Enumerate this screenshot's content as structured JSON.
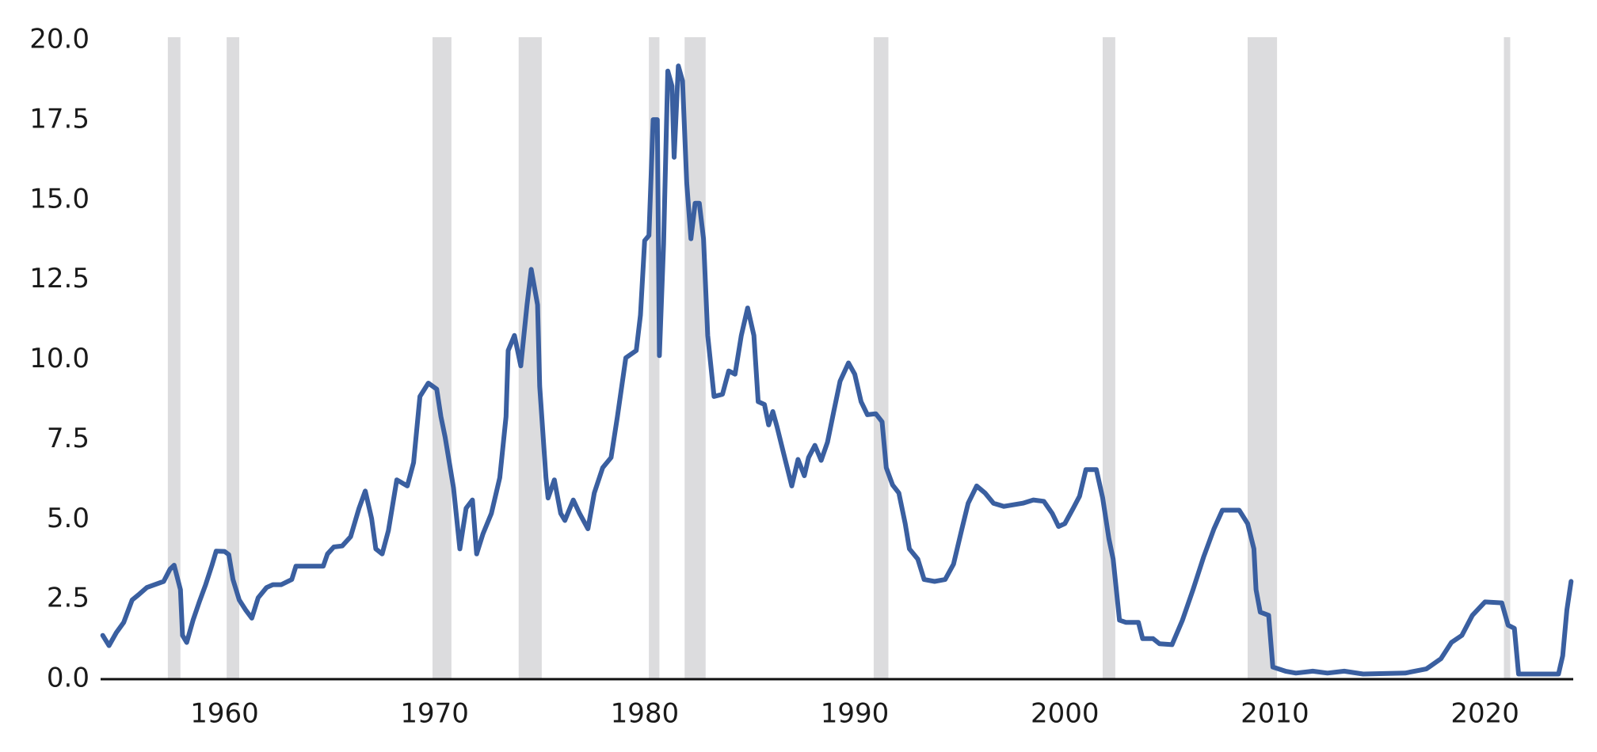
{
  "chart_data": {
    "type": "line",
    "x": [
      1954.2,
      1954.5,
      1954.85,
      1955.2,
      1955.6,
      1955.9,
      1956.3,
      1957.1,
      1957.4,
      1957.6,
      1957.9,
      1958.0,
      1958.2,
      1958.5,
      1958.8,
      1959.1,
      1959.4,
      1959.6,
      1960.0,
      1960.2,
      1960.4,
      1960.7,
      1961.0,
      1961.3,
      1961.6,
      1962.0,
      1962.3,
      1962.7,
      1963.2,
      1963.4,
      1964.4,
      1964.7,
      1964.9,
      1965.2,
      1965.6,
      1966.0,
      1966.4,
      1966.7,
      1967.0,
      1967.2,
      1967.5,
      1967.8,
      1968.2,
      1968.7,
      1969.0,
      1969.3,
      1969.7,
      1970.1,
      1970.3,
      1970.5,
      1970.9,
      1971.2,
      1971.5,
      1971.8,
      1972.0,
      1972.3,
      1972.7,
      1973.1,
      1973.4,
      1973.5,
      1973.8,
      1974.1,
      1974.4,
      1974.6,
      1974.9,
      1975.0,
      1975.3,
      1975.4,
      1975.7,
      1976.0,
      1976.2,
      1976.6,
      1976.9,
      1977.3,
      1977.6,
      1978.0,
      1978.4,
      1978.7,
      1979.1,
      1979.6,
      1979.8,
      1980.0,
      1980.2,
      1980.4,
      1980.6,
      1980.7,
      1980.9,
      1981.1,
      1981.3,
      1981.4,
      1981.6,
      1981.8,
      1982.0,
      1982.2,
      1982.4,
      1982.6,
      1982.8,
      1983.0,
      1983.3,
      1983.7,
      1984.0,
      1984.3,
      1984.6,
      1984.9,
      1985.2,
      1985.4,
      1985.7,
      1985.9,
      1986.1,
      1986.3,
      1986.6,
      1987.0,
      1987.3,
      1987.6,
      1987.8,
      1988.1,
      1988.4,
      1988.7,
      1989.0,
      1989.3,
      1989.7,
      1990.0,
      1990.3,
      1990.6,
      1991.0,
      1991.3,
      1991.5,
      1991.8,
      1992.1,
      1992.4,
      1992.6,
      1993.0,
      1993.3,
      1993.8,
      1994.3,
      1994.7,
      1995.1,
      1995.4,
      1995.8,
      1996.2,
      1996.6,
      1997.1,
      1998.0,
      1998.5,
      1999.0,
      1999.4,
      1999.7,
      2000.0,
      2000.4,
      2000.7,
      2001.0,
      2001.5,
      2001.8,
      2002.1,
      2002.3,
      2002.6,
      2002.9,
      2003.5,
      2003.7,
      2004.2,
      2004.5,
      2005.1,
      2005.6,
      2006.1,
      2006.6,
      2007.1,
      2007.5,
      2008.3,
      2008.7,
      2009.0,
      2009.1,
      2009.3,
      2009.7,
      2009.9,
      2010.5,
      2011.0,
      2011.8,
      2012.5,
      2013.3,
      2014.2,
      2016.2,
      2017.2,
      2017.4,
      2017.9,
      2018.4,
      2018.9,
      2019.4,
      2020.0,
      2020.8,
      2021.1,
      2021.4,
      2021.6,
      2023.5,
      2023.7,
      2023.9,
      2024.1
    ],
    "values": [
      1.37,
      1.05,
      1.46,
      1.78,
      2.48,
      2.64,
      2.87,
      3.06,
      3.44,
      3.57,
      2.8,
      1.37,
      1.15,
      1.85,
      2.42,
      2.96,
      3.57,
      4.01,
      4.0,
      3.9,
      3.12,
      2.48,
      2.17,
      1.91,
      2.55,
      2.87,
      2.96,
      2.96,
      3.12,
      3.54,
      3.54,
      3.54,
      3.92,
      4.14,
      4.17,
      4.46,
      5.35,
      5.89,
      5.03,
      4.08,
      3.92,
      4.65,
      6.24,
      6.05,
      6.78,
      8.85,
      9.27,
      9.08,
      8.22,
      7.58,
      5.99,
      4.08,
      5.35,
      5.61,
      3.92,
      4.55,
      5.19,
      6.31,
      8.22,
      10.29,
      10.76,
      9.81,
      11.72,
      12.83,
      11.72,
      9.17,
      6.31,
      5.67,
      6.24,
      5.19,
      4.97,
      5.61,
      5.19,
      4.71,
      5.83,
      6.62,
      6.94,
      8.22,
      10.06,
      10.29,
      11.4,
      13.73,
      13.89,
      17.52,
      17.52,
      10.13,
      13.63,
      19.04,
      18.57,
      16.34,
      19.2,
      18.73,
      15.54,
      13.79,
      14.9,
      14.9,
      13.79,
      10.76,
      8.85,
      8.92,
      9.65,
      9.55,
      10.76,
      11.62,
      10.76,
      8.69,
      8.6,
      7.96,
      8.38,
      7.9,
      7.1,
      6.05,
      6.88,
      6.37,
      6.94,
      7.32,
      6.85,
      7.42,
      8.38,
      9.33,
      9.9,
      9.55,
      8.69,
      8.28,
      8.31,
      8.06,
      6.62,
      6.08,
      5.83,
      4.87,
      4.08,
      3.76,
      3.12,
      3.06,
      3.12,
      3.6,
      4.71,
      5.51,
      6.05,
      5.83,
      5.51,
      5.41,
      5.51,
      5.61,
      5.57,
      5.19,
      4.78,
      4.87,
      5.35,
      5.73,
      6.56,
      6.56,
      5.67,
      4.39,
      3.76,
      1.85,
      1.78,
      1.78,
      1.27,
      1.27,
      1.11,
      1.08,
      1.85,
      2.8,
      3.82,
      4.71,
      5.29,
      5.29,
      4.87,
      4.08,
      2.8,
      2.1,
      2.0,
      0.38,
      0.25,
      0.19,
      0.25,
      0.19,
      0.25,
      0.16,
      0.19,
      0.32,
      0.41,
      0.64,
      1.15,
      1.37,
      2.0,
      2.42,
      2.39,
      1.69,
      1.59,
      0.16,
      0.16,
      0.73,
      2.17,
      3.06
    ],
    "color": "#3a5fa0",
    "recessions": [
      [
        1957.3,
        1957.9
      ],
      [
        1960.1,
        1960.7
      ],
      [
        1969.9,
        1970.8
      ],
      [
        1974.0,
        1975.1
      ],
      [
        1980.2,
        1980.7
      ],
      [
        1981.9,
        1982.9
      ],
      [
        1990.9,
        1991.6
      ],
      [
        2001.8,
        2002.4
      ],
      [
        2008.7,
        2010.1
      ],
      [
        2020.9,
        2021.2
      ]
    ],
    "recession_color": "#dcdcde",
    "xlim": [
      1954.1,
      2024.2
    ],
    "xticks": [
      1960,
      1970,
      1980,
      1990,
      2000,
      2010,
      2020
    ],
    "ylim": [
      0,
      20
    ],
    "yticks": [
      {
        "value": 0,
        "label": "0.0"
      },
      2.5,
      {
        "value": 5,
        "label": "5.0"
      },
      7.5,
      {
        "value": 10,
        "label": "10.0"
      },
      12.5,
      {
        "value": 15,
        "label": "15.0"
      },
      17.5,
      {
        "value": 20,
        "label": "20.0"
      }
    ]
  }
}
